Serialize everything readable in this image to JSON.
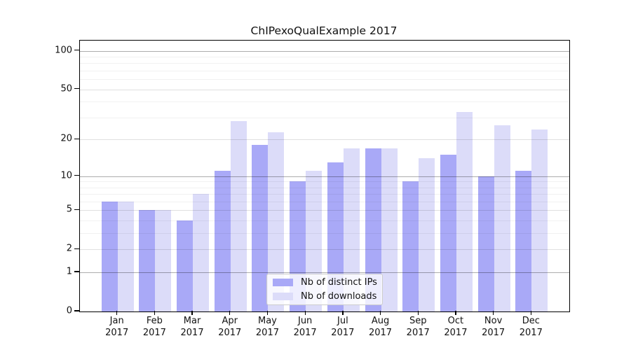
{
  "chart_data": {
    "type": "bar",
    "title": "ChIPexoQualExample 2017",
    "categories": [
      "Jan",
      "Feb",
      "Mar",
      "Apr",
      "May",
      "Jun",
      "Jul",
      "Aug",
      "Sep",
      "Oct",
      "Nov",
      "Dec"
    ],
    "x_year_label": "2017",
    "series": [
      {
        "name": "Nb of distinct IPs",
        "color": "#a9a9f7",
        "values": [
          6,
          5,
          4,
          11,
          18,
          9,
          13,
          17,
          9,
          15,
          10,
          11
        ]
      },
      {
        "name": "Nb of downloads",
        "color": "#dcdcf9",
        "values": [
          6,
          5,
          7,
          28,
          23,
          11,
          17,
          17,
          14,
          33,
          26,
          24
        ]
      }
    ],
    "yscale": "log1p",
    "ylim": [
      0,
      120
    ],
    "y_tick_values": [
      0,
      1,
      2,
      5,
      10,
      20,
      50,
      100
    ],
    "y_gridlines": {
      "emphasized": [
        1,
        10,
        100
      ],
      "major": [
        2,
        5,
        20,
        50
      ],
      "minor": [
        3,
        4,
        6,
        7,
        8,
        9,
        30,
        40,
        60,
        70,
        80,
        90
      ]
    },
    "grid": "horizontal",
    "legend_position": "lower-center",
    "xlabel": "",
    "ylabel": ""
  }
}
